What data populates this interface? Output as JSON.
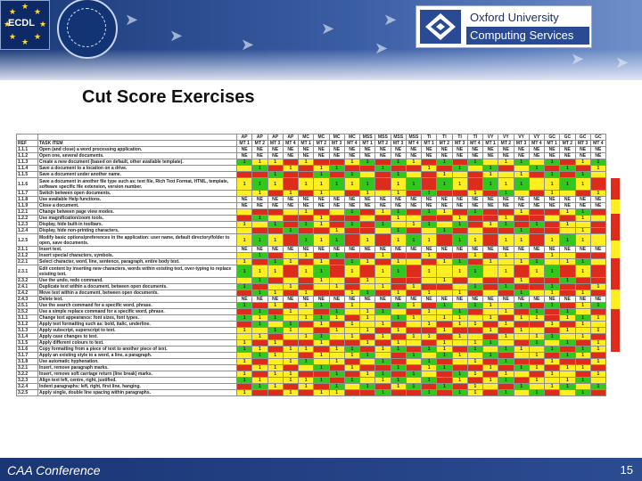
{
  "header": {
    "ecdl_label": "ECDL",
    "org_line1": "Oxford University",
    "org_line2": "Computing Services"
  },
  "slide": {
    "title": "Cut Score Exercises",
    "footer_label": "CAA Conference",
    "page_number": "15"
  },
  "colors": {
    "red": "#dd2b1c",
    "yellow": "#ffee22",
    "green": "#32c71e",
    "header_blue": "#1b3a78"
  },
  "legend": {
    "ref": "REF",
    "task": "TASK ITEM"
  },
  "groups": [
    "AP",
    "AP",
    "AP",
    "AP",
    "MC",
    "MC",
    "MC",
    "MC",
    "MSS",
    "MSS",
    "MSS",
    "MSS",
    "TI",
    "TI",
    "TI",
    "TI",
    "VY",
    "VY",
    "VY",
    "VY",
    "GC",
    "GC",
    "GC",
    "GC"
  ],
  "subheaders": [
    "MT 1",
    "MT 2",
    "MT 3",
    "MT 4",
    "MT 1",
    "MT 2",
    "MT 3",
    "MT 4",
    "MT 1",
    "MT 2",
    "MT 3",
    "MT 4",
    "MT 1",
    "MT 2",
    "MT 3",
    "MT 4",
    "MT 1",
    "MT 2",
    "MT 3",
    "MT 4",
    "MT 1",
    "MT 2",
    "MT 3",
    "MT 4"
  ],
  "rows": [
    {
      "ref": "1.1.1",
      "task": "Open (and close) a word processing application.",
      "vals": [
        "NE",
        "NE",
        "NE",
        "NE",
        "NE",
        "NE",
        "NE",
        "NE",
        "NE",
        "NE",
        "NE",
        "NE",
        "NE",
        "NE",
        "NE",
        "NE",
        "NE",
        "NE",
        "NE",
        "NE",
        "NE",
        "NE",
        "NE",
        "NE"
      ]
    },
    {
      "ref": "1.1.2",
      "task": "Open one, several documents.",
      "vals": [
        "NE",
        "NE",
        "NE",
        "NE",
        "NE",
        "NE",
        "NE",
        "NE",
        "NE",
        "NE",
        "NE",
        "NE",
        "NE",
        "NE",
        "NE",
        "NE",
        "NE",
        "NE",
        "NE",
        "NE",
        "NE",
        "NE",
        "NE",
        "NE"
      ]
    },
    {
      "ref": "1.1.3",
      "task": "Create a new document (based on default, other available template).",
      "vals": [
        "1",
        "1",
        "1",
        "",
        "1",
        "",
        "",
        "1",
        "1",
        "",
        "1",
        "1",
        "",
        "1",
        "",
        "1",
        "",
        "1",
        "1",
        "",
        "1",
        "",
        "1",
        "1"
      ]
    },
    {
      "ref": "1.1.4",
      "task": "Save a document to a location on a drive.",
      "vals": [
        "",
        "1",
        "",
        "1",
        "",
        "1",
        "1",
        "",
        "",
        "1",
        "",
        "",
        "1",
        "",
        "1",
        "",
        "1",
        "",
        "",
        "1",
        "",
        "1",
        "",
        "1"
      ]
    },
    {
      "ref": "1.1.5",
      "task": "Save a document under another name.",
      "vals": [
        "",
        "",
        "1",
        "",
        "",
        "1",
        "",
        "1",
        "",
        "",
        "1",
        "",
        "",
        "1",
        "",
        "",
        "1",
        "",
        "1",
        "",
        "1",
        "",
        "1",
        ""
      ]
    },
    {
      "ref": "1.1.6",
      "task": "Save a document in another file type such as: text file, Rich Text Format, HTML, template, software specific file extension, version number.",
      "vals": [
        "1",
        "1",
        "1",
        "",
        "1",
        "1",
        "1",
        "1",
        "1",
        "",
        "1",
        "1",
        "",
        "1",
        "1",
        "",
        "1",
        "1",
        "1",
        "",
        "1",
        "1",
        "1",
        ""
      ]
    },
    {
      "ref": "1.1.7",
      "task": "Switch between open documents.",
      "vals": [
        "",
        "1",
        "",
        "1",
        "",
        "1",
        "",
        "",
        "1",
        "",
        "1",
        "",
        "1",
        "",
        "",
        "1",
        "",
        "1",
        "",
        "",
        "1",
        "",
        "",
        "1"
      ]
    },
    {
      "ref": "1.1.8",
      "task": "Use available Help functions.",
      "vals": [
        "NE",
        "NE",
        "NE",
        "NE",
        "NE",
        "NE",
        "NE",
        "NE",
        "NE",
        "NE",
        "NE",
        "NE",
        "NE",
        "NE",
        "NE",
        "NE",
        "NE",
        "NE",
        "NE",
        "NE",
        "NE",
        "NE",
        "NE",
        "NE"
      ]
    },
    {
      "ref": "1.1.9",
      "task": "Close a document.",
      "vals": [
        "NE",
        "NE",
        "NE",
        "NE",
        "NE",
        "NE",
        "NE",
        "NE",
        "NE",
        "NE",
        "NE",
        "NE",
        "NE",
        "NE",
        "NE",
        "NE",
        "NE",
        "NE",
        "NE",
        "NE",
        "NE",
        "NE",
        "NE",
        "NE"
      ]
    },
    {
      "ref": "1.2.1",
      "task": "Change between page view modes.",
      "vals": [
        "",
        "",
        "",
        "",
        "1",
        "",
        "",
        "1",
        "",
        "1",
        "1",
        "",
        "1",
        "1",
        "",
        "1",
        "",
        "",
        "1",
        "",
        "",
        "1",
        "1",
        ""
      ]
    },
    {
      "ref": "1.2.2",
      "task": "Use magnification/zoom tools.",
      "vals": [
        "",
        "1",
        "",
        "",
        "",
        "1",
        "",
        "",
        "",
        "",
        "1",
        "",
        "",
        "",
        "1",
        "",
        "",
        "1",
        "",
        "",
        "",
        "",
        "1",
        ""
      ]
    },
    {
      "ref": "1.2.3",
      "task": "Display, hide built-in toolbars.",
      "vals": [
        "1",
        "",
        "1",
        "",
        "1",
        "1",
        "",
        "1",
        "",
        "1",
        "",
        "1",
        "1",
        "",
        "1",
        "",
        "1",
        "1",
        "",
        "1",
        "",
        "1",
        "",
        ""
      ]
    },
    {
      "ref": "1.2.4",
      "task": "Display, hide non-printing characters.",
      "vals": [
        "",
        "",
        "",
        "1",
        "",
        "",
        "1",
        "",
        "",
        "",
        "1",
        "",
        "",
        "1",
        "",
        "",
        "",
        "",
        "1",
        "",
        "",
        "",
        "1",
        ""
      ]
    },
    {
      "ref": "1.2.5",
      "task": "Modify basic options/preferences in the application: user name, default directory/folder to open, save documents.",
      "vals": [
        "1",
        "1",
        "1",
        "",
        "1",
        "1",
        "1",
        "",
        "1",
        "",
        "1",
        "1",
        "1",
        "",
        "1",
        "1",
        "",
        "1",
        "1",
        "",
        "1",
        "1",
        "1",
        ""
      ]
    },
    {
      "ref": "2.1.1",
      "task": "Insert text.",
      "vals": [
        "NE",
        "NE",
        "NE",
        "NE",
        "NE",
        "NE",
        "NE",
        "NE",
        "NE",
        "NE",
        "NE",
        "NE",
        "NE",
        "NE",
        "NE",
        "NE",
        "NE",
        "NE",
        "NE",
        "NE",
        "NE",
        "NE",
        "NE",
        "NE"
      ]
    },
    {
      "ref": "2.1.2",
      "task": "Insert special characters, symbols.",
      "vals": [
        "",
        "1",
        "",
        "",
        "1",
        "",
        "1",
        "",
        "",
        "1",
        "",
        "",
        "1",
        "",
        "",
        "1",
        "",
        "1",
        "",
        "",
        "1",
        "",
        "",
        ""
      ]
    },
    {
      "ref": "2.2.1",
      "task": "Select character, word, line, sentence, paragraph, entire body text.",
      "vals": [
        "1",
        "",
        "1",
        "1",
        "",
        "1",
        "",
        "1",
        "1",
        "",
        "1",
        "",
        "",
        "1",
        "1",
        "",
        "1",
        "",
        "1",
        "1",
        "",
        "1",
        "1",
        ""
      ]
    },
    {
      "ref": "2.3.1",
      "task": "Edit content by inserting new characters, words within existing text, over-typing to replace existing text.",
      "vals": [
        "1",
        "1",
        "1",
        "",
        "1",
        "1",
        "",
        "1",
        "",
        "1",
        "1",
        "",
        "1",
        "",
        "1",
        "1",
        "",
        "1",
        "",
        "1",
        "1",
        "",
        "1",
        ""
      ]
    },
    {
      "ref": "2.3.2",
      "task": "Use the undo, redo command.",
      "vals": [
        "",
        "1",
        "",
        "",
        "",
        "1",
        "",
        "",
        "1",
        "",
        "",
        "",
        "",
        "1",
        "",
        "",
        "",
        "",
        "1",
        "",
        "",
        "1",
        "",
        ""
      ]
    },
    {
      "ref": "2.4.1",
      "task": "Duplicate text within a document, between open documents.",
      "vals": [
        "1",
        "",
        "",
        "1",
        "",
        "",
        "1",
        "",
        "",
        "1",
        "",
        "1",
        "",
        "",
        "",
        "1",
        "",
        "1",
        "",
        "",
        "1",
        "",
        "",
        "1"
      ]
    },
    {
      "ref": "2.4.2",
      "task": "Move text within a document, between open documents.",
      "vals": [
        "",
        "1",
        "1",
        "",
        "1",
        "",
        "",
        "1",
        "1",
        "",
        "1",
        "",
        "1",
        "",
        "1",
        "",
        "",
        "",
        "1",
        "",
        "1",
        "",
        "1",
        ""
      ]
    },
    {
      "ref": "2.4.3",
      "task": "Delete text.",
      "vals": [
        "NE",
        "NE",
        "NE",
        "NE",
        "NE",
        "NE",
        "NE",
        "NE",
        "NE",
        "NE",
        "NE",
        "NE",
        "NE",
        "NE",
        "NE",
        "NE",
        "NE",
        "NE",
        "NE",
        "NE",
        "NE",
        "NE",
        "NE",
        "NE"
      ]
    },
    {
      "ref": "2.5.1",
      "task": "Use the search command for a specific word, phrase.",
      "vals": [
        "1",
        "",
        "1",
        "",
        "1",
        "1",
        "",
        "1",
        "",
        "",
        "1",
        "1",
        "",
        "1",
        "",
        "1",
        "1",
        "",
        "1",
        "",
        "1",
        "",
        "1",
        "1"
      ]
    },
    {
      "ref": "2.5.2",
      "task": "Use a simple replace command for a specific word, phrase.",
      "vals": [
        "",
        "1",
        "",
        "1",
        "",
        "",
        "1",
        "",
        "1",
        "1",
        "",
        "",
        "1",
        "",
        "1",
        "",
        "",
        "1",
        "",
        "1",
        "",
        "1",
        "",
        ""
      ]
    },
    {
      "ref": "3.1.1",
      "task": "Change text appearance: font sizes, font types.",
      "vals": [
        "1",
        "1",
        "1",
        "",
        "1",
        "1",
        "1",
        "",
        "1",
        "",
        "1",
        "1",
        "",
        "1",
        "1",
        "",
        "1",
        "",
        "1",
        "1",
        "",
        "1",
        "1",
        "1"
      ]
    },
    {
      "ref": "3.1.2",
      "task": "Apply text formatting such as: bold, italic, underline.",
      "vals": [
        "",
        "1",
        "",
        "1",
        "",
        "1",
        "",
        "1",
        "",
        "1",
        "",
        "",
        "1",
        "",
        "1",
        "1",
        "",
        "1",
        "",
        "",
        "1",
        "",
        "1",
        ""
      ]
    },
    {
      "ref": "3.1.3",
      "task": "Apply subscript, superscript to text.",
      "vals": [
        "1",
        "",
        "1",
        "1",
        "",
        "",
        "1",
        "",
        "1",
        "",
        "1",
        "",
        "",
        "1",
        "",
        "",
        "1",
        "",
        "1",
        "",
        "",
        "1",
        "",
        "1"
      ]
    },
    {
      "ref": "3.1.4",
      "task": "Apply case changes to text.",
      "vals": [
        "",
        "1",
        "",
        "",
        "1",
        "1",
        "",
        "1",
        "",
        "1",
        "",
        "1",
        "1",
        "",
        "1",
        "",
        "",
        "1",
        "",
        "1",
        "1",
        "",
        "1",
        ""
      ]
    },
    {
      "ref": "3.1.5",
      "task": "Apply different colours to text.",
      "vals": [
        "1",
        "",
        "1",
        "",
        "",
        "1",
        "",
        "",
        "1",
        "",
        "1",
        "",
        "",
        "1",
        "",
        "1",
        "1",
        "",
        "",
        "1",
        "",
        "1",
        "",
        "1"
      ]
    },
    {
      "ref": "3.1.6",
      "task": "Copy formatting from a piece of text to another piece of text.",
      "vals": [
        "1",
        "1",
        "",
        "1",
        "1",
        "",
        "1",
        "1",
        "",
        "1",
        "1",
        "",
        "1",
        "1",
        "",
        "1",
        "",
        "1",
        "1",
        "",
        "1",
        "",
        "1",
        "1"
      ]
    },
    {
      "ref": "3.1.7",
      "task": "Apply an existing style to a word, a line, a paragraph.",
      "vals": [
        "",
        "1",
        "1",
        "",
        "",
        "1",
        "",
        "1",
        "1",
        "",
        "",
        "1",
        "",
        "1",
        "1",
        "",
        "1",
        "",
        "",
        "1",
        "",
        "1",
        "1",
        ""
      ]
    },
    {
      "ref": "3.1.8",
      "task": "Use automatic hyphenation.",
      "vals": [
        "1",
        "",
        "",
        "1",
        "1",
        "",
        "1",
        "",
        "",
        "1",
        "",
        "",
        "1",
        "",
        "",
        "1",
        "",
        "1",
        "",
        "",
        "1",
        "",
        "",
        "1"
      ]
    },
    {
      "ref": "3.2.1",
      "task": "Insert, remove paragraph marks.",
      "vals": [
        "",
        "1",
        "1",
        "",
        "",
        "1",
        "",
        "1",
        "",
        "",
        "1",
        "",
        "1",
        "1",
        "",
        "",
        "1",
        "",
        "1",
        "1",
        "",
        "1",
        "1",
        ""
      ]
    },
    {
      "ref": "3.2.2",
      "task": "Insert, remove soft carriage return (line break) marks.",
      "vals": [
        "1",
        "",
        "1",
        "1",
        "",
        "",
        "1",
        "",
        "1",
        "1",
        "",
        "1",
        "",
        "",
        "1",
        "1",
        "",
        "1",
        "",
        "",
        "1",
        "",
        "",
        "1"
      ]
    },
    {
      "ref": "3.2.3",
      "task": "Align text left, centre, right, justified.",
      "vals": [
        "1",
        "1",
        "",
        "1",
        "1",
        "1",
        "",
        "1",
        "",
        "1",
        "1",
        "",
        "1",
        "",
        "1",
        "",
        "1",
        "1",
        "",
        "1",
        "",
        "1",
        "1",
        ""
      ]
    },
    {
      "ref": "3.2.4",
      "task": "Indent paragraphs: left, right, first line, hanging.",
      "vals": [
        "",
        "1",
        "1",
        "",
        "1",
        "",
        "1",
        "",
        "1",
        "",
        "1",
        "1",
        "",
        "1",
        "",
        "1",
        "",
        "",
        "1",
        "",
        "1",
        "1",
        "",
        "1"
      ]
    },
    {
      "ref": "3.2.5",
      "task": "Apply single, double line spacing within paragraphs.",
      "vals": [
        "1",
        "",
        "",
        "1",
        "",
        "1",
        "1",
        "",
        "",
        "1",
        "",
        "",
        "1",
        "",
        "1",
        "1",
        "",
        "1",
        "",
        "1",
        "",
        "",
        "1",
        ""
      ]
    }
  ]
}
